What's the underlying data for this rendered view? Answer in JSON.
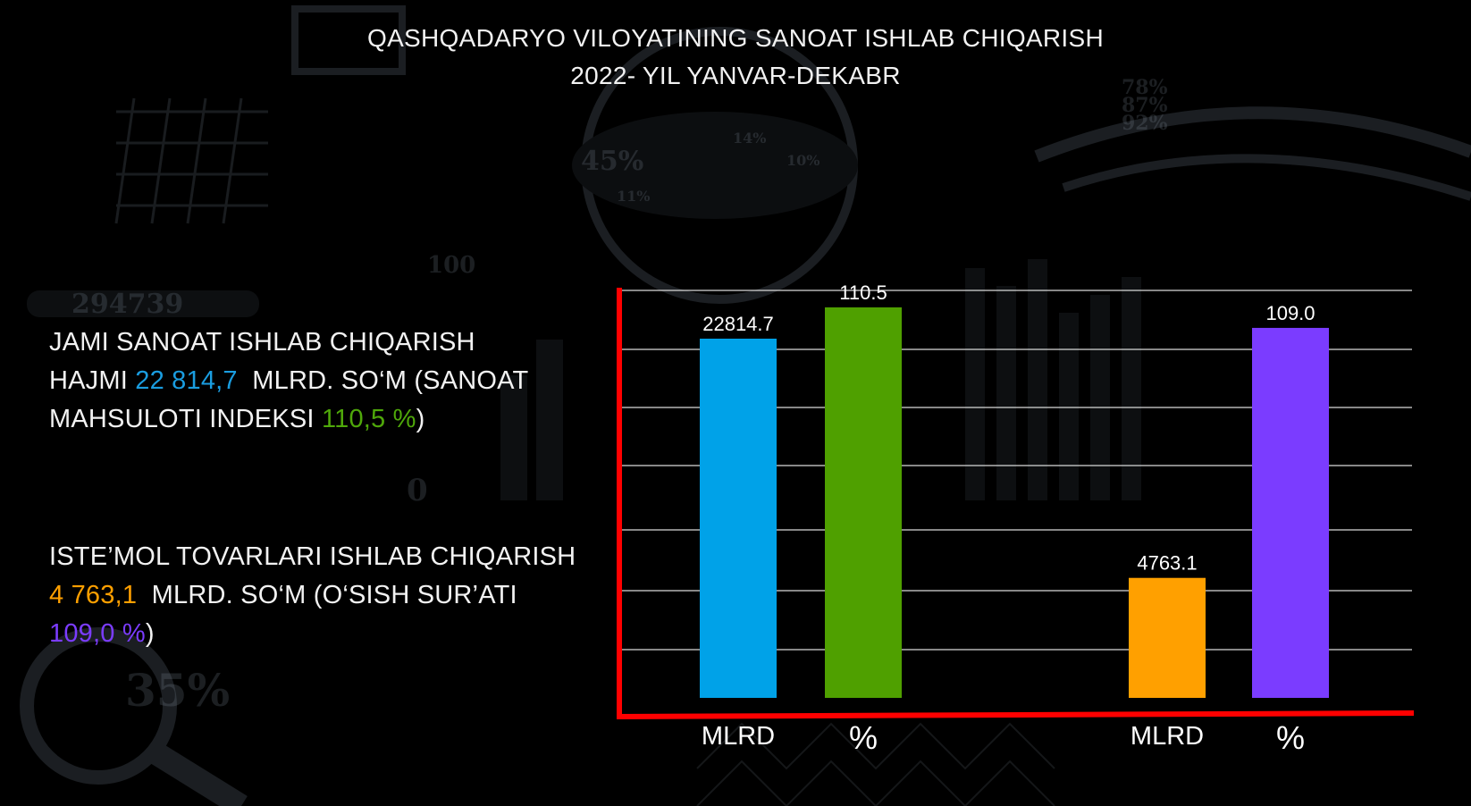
{
  "header": {
    "title_line1": "QASHQADARYO VILOYATINING SANOAT ISHLAB CHIQARISH",
    "title_line2": "2022- YIL YANVAR-DEKABR"
  },
  "info_blocks": [
    {
      "line1": "JAMI SANOAT ISHLAB CHIQARISH",
      "prefix": "HAJMI ",
      "volume": "22 814,7",
      "mid": "  MLRD. SO‘M (SANOAT",
      "line3_prefix": "MAHSULOTI INDEKSI ",
      "index": "110,5 %",
      "suffix": ")"
    },
    {
      "line1": "ISTE’MOL TOVARLARI ISHLAB CHIQARISH",
      "volume": "4 763,1",
      "mid": "  MLRD. SO‘M (O‘SISH SUR’ATI",
      "index": "109,0 %",
      "suffix": ")"
    }
  ],
  "background_text": [
    "294739",
    "100",
    "0",
    "45%",
    "14%",
    "10%",
    "11%",
    "78%",
    "87%",
    "92%",
    "35%"
  ],
  "colors": {
    "axis": "#ff0000",
    "grid": "#d9d9d9",
    "bar_mlrd_1": "#00a2e8",
    "bar_pct_1": "#4fa000",
    "bar_mlrd_2": "#ffa000",
    "bar_pct_2": "#7b3cff"
  },
  "chart_data": {
    "type": "bar",
    "categories": [
      "MLRD",
      "%",
      "MLRD",
      "%"
    ],
    "values": [
      22814.7,
      110.5,
      4763.1,
      109.0
    ],
    "value_labels": [
      "22814.7",
      "110.5",
      "4763.1",
      "109.0"
    ],
    "bar_colors": [
      "#00a2e8",
      "#4fa000",
      "#ffa000",
      "#7b3cff"
    ],
    "groups": [
      {
        "categories": [
          "MLRD",
          "%"
        ],
        "values": [
          22814.7,
          110.5
        ]
      },
      {
        "categories": [
          "MLRD",
          "%"
        ],
        "values": [
          4763.1,
          109.0
        ]
      }
    ],
    "title": "",
    "xlabel": "",
    "ylabel": "",
    "grid": true,
    "legend": "none",
    "note": "Mixed units; each bar drawn on its own proportional scale"
  }
}
